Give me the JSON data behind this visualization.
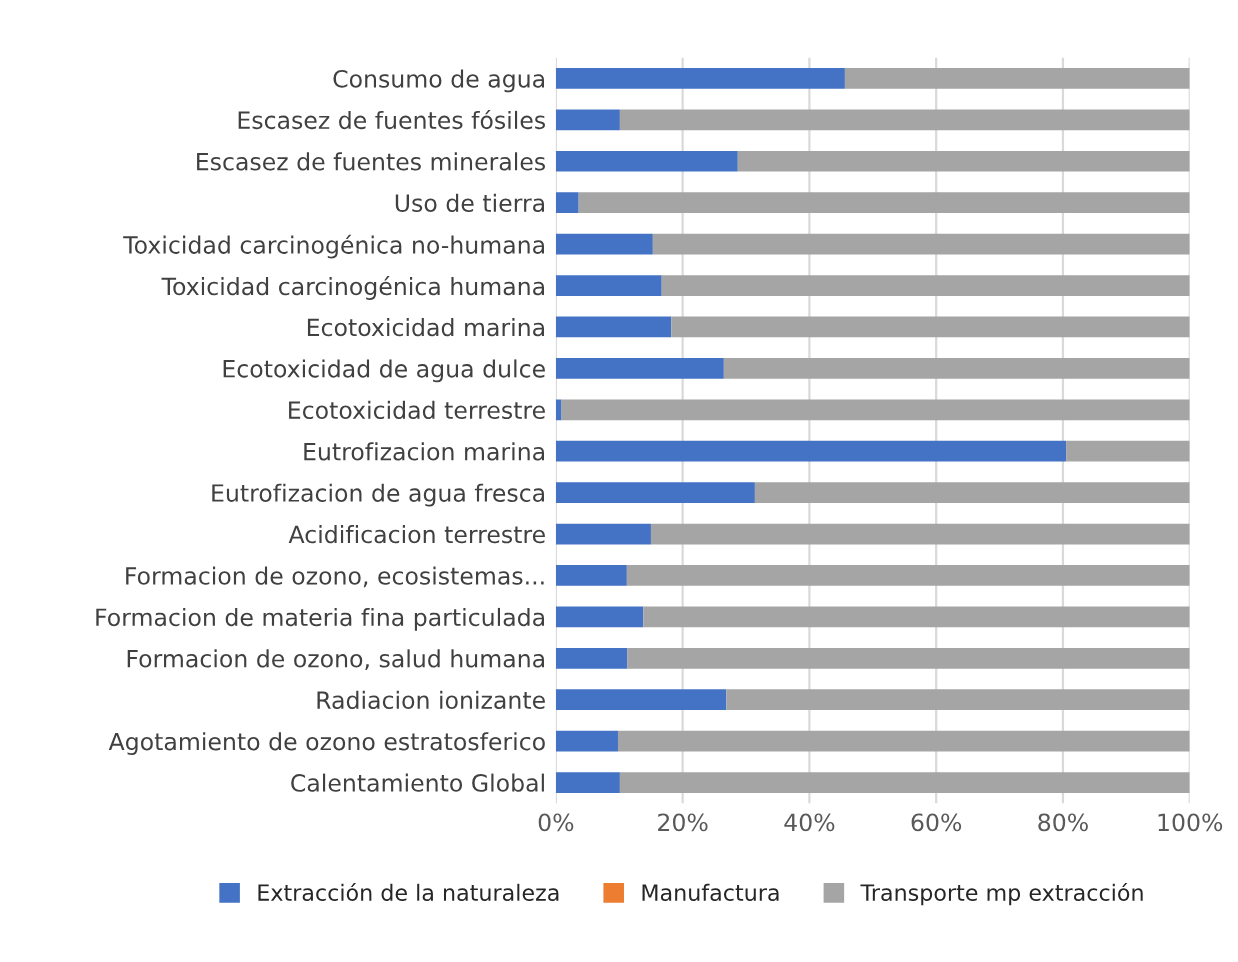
{
  "chart_data": {
    "type": "bar",
    "orientation": "horizontal",
    "stacked": true,
    "categories": [
      "Consumo de agua",
      "Escasez de fuentes fósiles",
      "Escasez de fuentes minerales",
      "Uso de tierra",
      "Toxicidad carcinogénica no-humana",
      "Toxicidad carcinogénica humana",
      "Ecotoxicidad marina",
      "Ecotoxicidad de agua dulce",
      "Ecotoxicidad terrestre",
      "Eutrofizacion marina",
      "Eutrofizacion de agua fresca",
      "Acidificacion terrestre",
      "Formacion de ozono, ecosistemas...",
      "Formacion de materia fina particulada",
      "Formacion de ozono, salud humana",
      "Radiacion ionizante",
      "Agotamiento de ozono estratosferico",
      "Calentamiento Global"
    ],
    "series": [
      {
        "name": "Extracción de la naturaleza",
        "color": "#4472c4",
        "values": [
          45.6,
          10.1,
          28.7,
          3.6,
          15.3,
          16.7,
          18.2,
          26.5,
          0.9,
          80.5,
          31.4,
          15.0,
          11.2,
          13.8,
          11.3,
          26.9,
          9.8,
          10.1
        ]
      },
      {
        "name": "Manufactura",
        "color": "#ed7d31",
        "values": [
          0,
          0,
          0,
          0,
          0,
          0,
          0,
          0,
          0,
          0,
          0,
          0,
          0,
          0,
          0,
          0,
          0,
          0
        ]
      },
      {
        "name": "Transporte mp extracción",
        "color": "#a5a5a5",
        "values": [
          54.4,
          89.9,
          71.3,
          96.4,
          84.7,
          83.3,
          81.8,
          73.5,
          99.1,
          19.5,
          68.6,
          85.0,
          88.8,
          86.2,
          88.7,
          73.1,
          90.2,
          89.9
        ]
      }
    ],
    "xlim": [
      0,
      100
    ],
    "xticks": [
      {
        "value": 0,
        "label": "0%"
      },
      {
        "value": 20,
        "label": "20%"
      },
      {
        "value": 40,
        "label": "40%"
      },
      {
        "value": 60,
        "label": "60%"
      },
      {
        "value": 80,
        "label": "80%"
      },
      {
        "value": 100,
        "label": "100%"
      }
    ],
    "grid": "x",
    "legend": "bottom"
  }
}
